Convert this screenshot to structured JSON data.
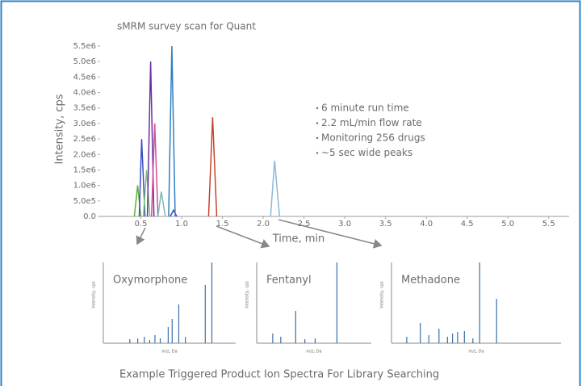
{
  "chart_data": [
    {
      "type": "line",
      "title": "sMRM survey scan for Quant",
      "xlabel": "Time, min",
      "ylabel": "Intensity, cps",
      "annotations": [
        "6 minute run time",
        "2.2 mL/min flow rate",
        "Monitoring 256 drugs",
        "~5 sec wide peaks"
      ],
      "xlim": [
        0,
        5.75
      ],
      "ylim": [
        0,
        5500000
      ],
      "xticks": [
        0.5,
        {
          "value": 1,
          "label": "1.0"
        },
        1.5,
        {
          "value": 2,
          "label": "2.0"
        },
        2.5,
        {
          "value": 3,
          "label": "3.0"
        },
        3.5,
        {
          "value": 4,
          "label": "4.0"
        },
        4.5,
        {
          "value": 5,
          "label": "5.0"
        },
        5.5
      ],
      "yticks": [
        {
          "value": 0,
          "label": "0.0"
        },
        {
          "value": 500000,
          "label": "5.0e5"
        },
        {
          "value": 1000000,
          "label": "1.0e6"
        },
        {
          "value": 1500000,
          "label": "1.5e6"
        },
        {
          "value": 2000000,
          "label": "2.0e6"
        },
        {
          "value": 2500000,
          "label": "2.5e6"
        },
        {
          "value": 3000000,
          "label": "3.0e6"
        },
        {
          "value": 3500000,
          "label": "3.5e6"
        },
        {
          "value": 4000000,
          "label": "4.0e6"
        },
        {
          "value": 4500000,
          "label": "4.5e6"
        },
        {
          "value": 5000000,
          "label": "5.0e6"
        },
        {
          "value": 5500000,
          "label": "5.5e6"
        }
      ],
      "series": [
        {
          "color": "#5fae3c",
          "x": [
            0.42,
            0.46,
            0.5
          ],
          "values": [
            0,
            1000000,
            0
          ]
        },
        {
          "color": "#3b4fc4",
          "x": [
            0.48,
            0.51,
            0.55
          ],
          "values": [
            0,
            2500000,
            0
          ]
        },
        {
          "color": "#7cc46a",
          "x": [
            0.53,
            0.57,
            0.61
          ],
          "values": [
            0,
            1500000,
            0
          ]
        },
        {
          "color": "#6a2fa0",
          "x": [
            0.58,
            0.62,
            0.66
          ],
          "values": [
            0,
            5000000,
            0
          ]
        },
        {
          "color": "#d0509a",
          "x": [
            0.63,
            0.67,
            0.71
          ],
          "values": [
            0,
            3000000,
            0
          ]
        },
        {
          "color": "#7fb8b0",
          "x": [
            0.71,
            0.75,
            0.8
          ],
          "values": [
            0,
            800000,
            0
          ]
        },
        {
          "color": "#3a4aa8",
          "x": [
            0.86,
            0.9,
            0.94
          ],
          "values": [
            0,
            200000,
            0
          ]
        },
        {
          "color": "#2f7fc1",
          "x": [
            0.84,
            0.88,
            0.92
          ],
          "values": [
            0,
            5500000,
            0
          ]
        },
        {
          "color": "#c0462e",
          "x": [
            1.33,
            1.38,
            1.43
          ],
          "values": [
            0,
            3200000,
            0
          ]
        },
        {
          "color": "#8bb8d8",
          "x": [
            2.09,
            2.14,
            2.2
          ],
          "values": [
            0,
            1800000,
            0
          ]
        }
      ]
    },
    {
      "type": "spectrum",
      "title": "Oxymorphone",
      "xlabel": "m/z, Da",
      "ylabel": "Intensity, cps",
      "color": "#3a6fa8",
      "xlim": [
        0,
        100
      ],
      "ylim": [
        0,
        100
      ],
      "x": [
        20,
        26,
        31,
        35,
        39,
        43,
        49,
        52,
        57,
        62,
        77,
        82
      ],
      "values": [
        5,
        6,
        8,
        4,
        10,
        6,
        20,
        30,
        48,
        8,
        72,
        100
      ]
    },
    {
      "type": "spectrum",
      "title": "Fentanyl",
      "xlabel": "m/z, Da",
      "ylabel": "Intensity, cps",
      "color": "#3a6fa8",
      "xlim": [
        0,
        100
      ],
      "ylim": [
        0,
        100
      ],
      "x": [
        14,
        21,
        34,
        42,
        51,
        70
      ],
      "values": [
        12,
        8,
        40,
        5,
        6,
        100
      ]
    },
    {
      "type": "spectrum",
      "title": "Methadone",
      "xlabel": "m/z, Da",
      "ylabel": "Intensity, cps",
      "color": "#3a6fa8",
      "xlim": [
        0,
        100
      ],
      "ylim": [
        0,
        100
      ],
      "x": [
        9,
        17,
        22,
        28,
        33,
        36,
        39,
        43,
        48,
        52,
        62
      ],
      "values": [
        8,
        25,
        10,
        18,
        8,
        12,
        14,
        15,
        6,
        100,
        55
      ]
    }
  ],
  "caption": "Example Triggered Product Ion Spectra For Library Searching"
}
